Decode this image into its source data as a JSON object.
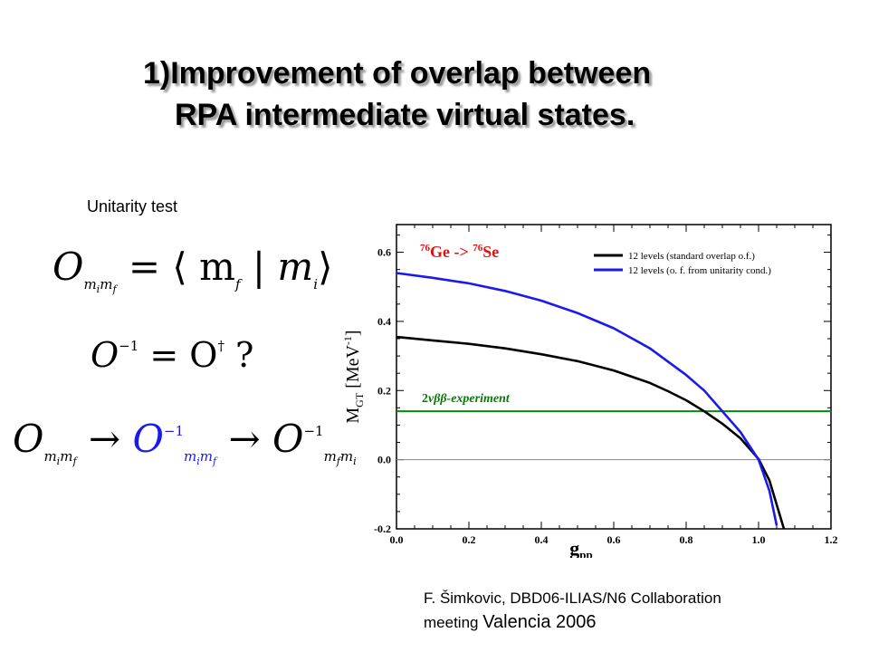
{
  "slide": {
    "title_line1": "1)Improvement  of overlap between",
    "title_line2": "RPA intermediate  virtual  states.",
    "subtitle": "Unitarity test",
    "citation_line1": "F. Šimkovic, DBD06-ILIAS/N6 Collaboration",
    "citation_line2_small": "meeting ",
    "citation_line2_big": "Valencia 2006"
  },
  "equations": {
    "eq1": {
      "lhs": "O",
      "sub_i": "m",
      "sub_i_idx": "i",
      "sub_f": "m",
      "sub_f_idx": "f",
      "rhs": "= ⟨ m",
      "rhs_f": "f",
      "bar": "|",
      "rhs_m": "m",
      "rhs_i": "i",
      "close": "⟩"
    },
    "eq2": {
      "text": "O",
      "inv": "−1",
      "eq": " = O",
      "dag": "†",
      "q": "  ?"
    },
    "eq3": {
      "o": "O",
      "arrow": "→",
      "inv": "−1"
    }
  },
  "chart_data": {
    "type": "line",
    "title": "76Ge -> 76Se",
    "title_parts": {
      "m1": "76",
      "e1": "Ge -> ",
      "m2": "76",
      "e2": "Se"
    },
    "xlabel": "g",
    "xlabel_sub": "pp",
    "ylabel": "M",
    "ylabel_sub": "GT",
    "ylabel_unit": " [MeV",
    "ylabel_exp": "-1",
    "ylabel_close": "]",
    "xlim": [
      0.0,
      1.2
    ],
    "ylim": [
      -0.2,
      0.68
    ],
    "xticks": [
      0.0,
      0.2,
      0.4,
      0.6,
      0.8,
      1.0,
      1.2
    ],
    "xtick_labels": [
      "0.0",
      "0.2",
      "0.4",
      "0.6",
      "0.8",
      "1.0",
      "1.2"
    ],
    "yticks": [
      -0.2,
      0.0,
      0.2,
      0.4,
      0.6
    ],
    "ytick_labels": [
      "-0.2",
      "0.0",
      "0.2",
      "0.4",
      "0.6"
    ],
    "experiment_value": 0.14,
    "experiment_label_pre": "2",
    "experiment_label_italic": "νββ-experiment",
    "series": [
      {
        "name": "12 levels (standard overlap o.f.)",
        "color": "#000000",
        "x": [
          0.0,
          0.1,
          0.2,
          0.3,
          0.4,
          0.5,
          0.6,
          0.7,
          0.75,
          0.8,
          0.85,
          0.9,
          0.95,
          1.0,
          1.03,
          1.05,
          1.07
        ],
        "y": [
          0.355,
          0.345,
          0.335,
          0.322,
          0.305,
          0.285,
          0.258,
          0.222,
          0.198,
          0.172,
          0.14,
          0.104,
          0.062,
          0.002,
          -0.06,
          -0.13,
          -0.21
        ]
      },
      {
        "name": "12 levels (o. f. from unitarity cond.)",
        "color": "#1a1aee",
        "x": [
          0.0,
          0.1,
          0.2,
          0.3,
          0.4,
          0.5,
          0.6,
          0.7,
          0.8,
          0.85,
          0.9,
          0.95,
          1.0,
          1.03,
          1.05
        ],
        "y": [
          0.54,
          0.526,
          0.51,
          0.488,
          0.46,
          0.424,
          0.38,
          0.322,
          0.245,
          0.2,
          0.14,
          0.08,
          0.0,
          -0.09,
          -0.19
        ]
      }
    ],
    "zero_line": true
  }
}
